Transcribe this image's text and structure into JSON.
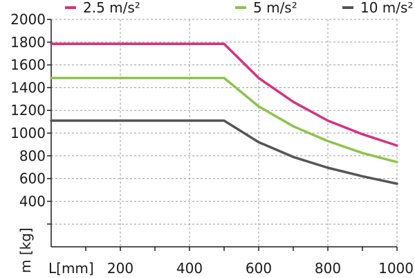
{
  "chart_data": {
    "type": "line",
    "title": "",
    "xlabel": "L[mm]",
    "ylabel": "m [kg]",
    "xlim": [
      0,
      1000
    ],
    "ylim": [
      0,
      2000
    ],
    "x_ticks": [
      200,
      400,
      600,
      800,
      1000
    ],
    "x_tick_labels": [
      "200",
      "400",
      "600",
      "800",
      "1000"
    ],
    "y_ticks": [
      400,
      600,
      800,
      1000,
      1200,
      1400,
      1600,
      1800,
      2000
    ],
    "y_tick_labels": [
      "400",
      "600",
      "800",
      "1000",
      "1200",
      "1400",
      "1600",
      "1800",
      "2000"
    ],
    "grid": true,
    "legend_position": "top",
    "series": [
      {
        "name": "2.5 m/s²",
        "color": "#d9307b",
        "x": [
          0,
          500,
          600,
          700,
          800,
          900,
          1000
        ],
        "y": [
          1785,
          1785,
          1485,
          1275,
          1110,
          990,
          890
        ]
      },
      {
        "name": "5 m/s²",
        "color": "#8cc34a",
        "x": [
          0,
          500,
          600,
          700,
          800,
          900,
          1000
        ],
        "y": [
          1485,
          1485,
          1235,
          1060,
          930,
          825,
          745
        ]
      },
      {
        "name": "10 m/s²",
        "color": "#555555",
        "x": [
          0,
          500,
          600,
          700,
          800,
          900,
          1000
        ],
        "y": [
          1110,
          1110,
          920,
          790,
          695,
          620,
          555
        ]
      }
    ]
  }
}
